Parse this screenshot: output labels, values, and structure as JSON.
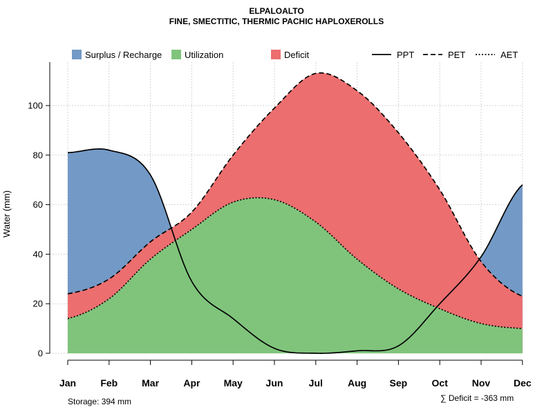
{
  "chart_data": {
    "type": "area",
    "title": "ELPALOALTO",
    "subtitle": "FINE, SMECTITIC, THERMIC PACHIC HAPLOXEROLLS",
    "ylabel": "Water (mm)",
    "xlabel": "",
    "ylim": [
      0,
      117
    ],
    "yticks": [
      0,
      20,
      40,
      60,
      80,
      100
    ],
    "grid": true,
    "categories": [
      "Jan",
      "Feb",
      "Mar",
      "Apr",
      "May",
      "Jun",
      "Jul",
      "Aug",
      "Sep",
      "Oct",
      "Nov",
      "Dec"
    ],
    "series": [
      {
        "name": "PPT",
        "style": "solid",
        "values": [
          81,
          82,
          72,
          29,
          14,
          2,
          0,
          1,
          3,
          20,
          39,
          68
        ]
      },
      {
        "name": "PET",
        "style": "dashed",
        "values": [
          24,
          30,
          45,
          57,
          80,
          99,
          113,
          106,
          89,
          66,
          37,
          23
        ]
      },
      {
        "name": "AET",
        "style": "dotted",
        "values": [
          14,
          22,
          38,
          50,
          61,
          62,
          53,
          38,
          26,
          18,
          12,
          10
        ]
      }
    ],
    "legend": {
      "areas": [
        {
          "label": "Surplus / Recharge",
          "color": "#7399C6"
        },
        {
          "label": "Utilization",
          "color": "#80C47C"
        },
        {
          "label": "Deficit",
          "color": "#EC6E6F"
        }
      ],
      "lines": [
        {
          "label": "PPT",
          "dash": "solid"
        },
        {
          "label": "PET",
          "dash": "dashed"
        },
        {
          "label": "AET",
          "dash": "dotted"
        }
      ]
    },
    "annotations": {
      "storage": "Storage: 394 mm",
      "deficit": "∑ Deficit = -363 mm"
    }
  },
  "colors": {
    "surplus": "#7399C6",
    "utilization": "#80C47C",
    "deficit": "#EC6E6F",
    "grid": "#d3d3d3"
  }
}
